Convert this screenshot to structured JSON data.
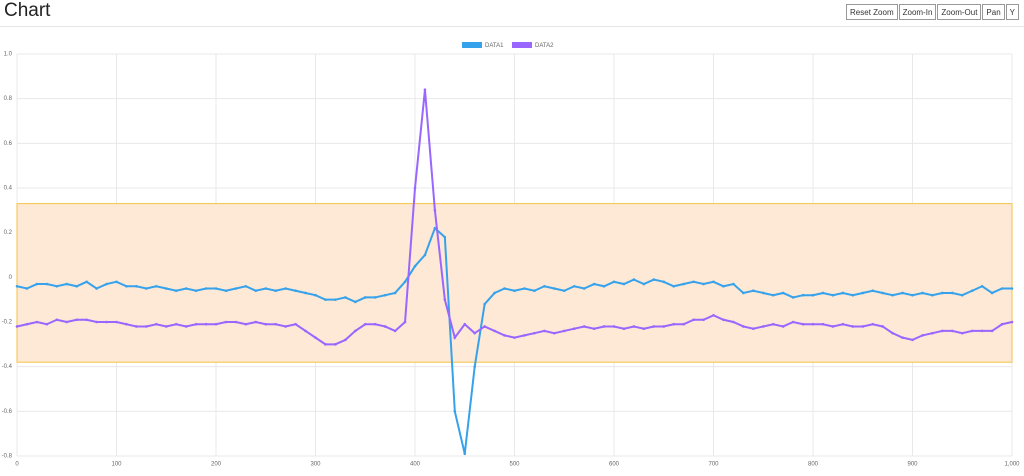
{
  "header": {
    "title": "Chart"
  },
  "toolbar": {
    "buttons": [
      "Reset Zoom",
      "Zoom-In",
      "Zoom-Out",
      "Pan",
      "Y"
    ]
  },
  "chart_data": {
    "type": "line",
    "x": [
      0,
      10,
      20,
      30,
      40,
      50,
      60,
      70,
      80,
      90,
      100,
      110,
      120,
      130,
      140,
      150,
      160,
      170,
      180,
      190,
      200,
      210,
      220,
      230,
      240,
      250,
      260,
      270,
      280,
      290,
      300,
      310,
      320,
      330,
      340,
      350,
      360,
      370,
      380,
      390,
      400,
      410,
      420,
      430,
      440,
      450,
      460,
      470,
      480,
      490,
      500,
      510,
      520,
      530,
      540,
      550,
      560,
      570,
      580,
      590,
      600,
      610,
      620,
      630,
      640,
      650,
      660,
      670,
      680,
      690,
      700,
      710,
      720,
      730,
      740,
      750,
      760,
      770,
      780,
      790,
      800,
      810,
      820,
      830,
      840,
      850,
      860,
      870,
      880,
      890,
      900,
      910,
      920,
      930,
      940,
      950,
      960,
      970,
      980,
      990,
      1000
    ],
    "series": [
      {
        "name": "DATA1",
        "color": "#36a2eb",
        "values": [
          -0.04,
          -0.05,
          -0.03,
          -0.03,
          -0.04,
          -0.03,
          -0.04,
          -0.02,
          -0.05,
          -0.03,
          -0.02,
          -0.04,
          -0.04,
          -0.05,
          -0.04,
          -0.05,
          -0.06,
          -0.05,
          -0.06,
          -0.05,
          -0.05,
          -0.06,
          -0.05,
          -0.04,
          -0.06,
          -0.05,
          -0.06,
          -0.05,
          -0.06,
          -0.07,
          -0.08,
          -0.1,
          -0.1,
          -0.09,
          -0.11,
          -0.09,
          -0.09,
          -0.08,
          -0.07,
          -0.02,
          0.05,
          0.1,
          0.22,
          0.18,
          -0.6,
          -0.79,
          -0.4,
          -0.12,
          -0.07,
          -0.05,
          -0.06,
          -0.05,
          -0.06,
          -0.04,
          -0.05,
          -0.06,
          -0.04,
          -0.05,
          -0.03,
          -0.04,
          -0.02,
          -0.03,
          -0.01,
          -0.03,
          -0.01,
          -0.02,
          -0.04,
          -0.03,
          -0.02,
          -0.03,
          -0.02,
          -0.04,
          -0.03,
          -0.07,
          -0.06,
          -0.07,
          -0.08,
          -0.07,
          -0.09,
          -0.08,
          -0.08,
          -0.07,
          -0.08,
          -0.07,
          -0.08,
          -0.07,
          -0.06,
          -0.07,
          -0.08,
          -0.07,
          -0.08,
          -0.07,
          -0.08,
          -0.07,
          -0.07,
          -0.08,
          -0.06,
          -0.04,
          -0.07,
          -0.05,
          -0.05
        ]
      },
      {
        "name": "DATA2",
        "color": "#9966ff",
        "values": [
          -0.22,
          -0.21,
          -0.2,
          -0.21,
          -0.19,
          -0.2,
          -0.19,
          -0.19,
          -0.2,
          -0.2,
          -0.2,
          -0.21,
          -0.22,
          -0.22,
          -0.21,
          -0.22,
          -0.21,
          -0.22,
          -0.21,
          -0.21,
          -0.21,
          -0.2,
          -0.2,
          -0.21,
          -0.2,
          -0.21,
          -0.21,
          -0.22,
          -0.21,
          -0.24,
          -0.27,
          -0.3,
          -0.3,
          -0.28,
          -0.24,
          -0.21,
          -0.21,
          -0.22,
          -0.24,
          -0.2,
          0.4,
          0.84,
          0.3,
          -0.1,
          -0.27,
          -0.21,
          -0.25,
          -0.22,
          -0.24,
          -0.26,
          -0.27,
          -0.26,
          -0.25,
          -0.24,
          -0.25,
          -0.24,
          -0.23,
          -0.22,
          -0.23,
          -0.22,
          -0.22,
          -0.23,
          -0.22,
          -0.23,
          -0.22,
          -0.22,
          -0.21,
          -0.21,
          -0.19,
          -0.19,
          -0.17,
          -0.19,
          -0.2,
          -0.22,
          -0.23,
          -0.22,
          -0.21,
          -0.22,
          -0.2,
          -0.21,
          -0.21,
          -0.21,
          -0.22,
          -0.21,
          -0.22,
          -0.22,
          -0.21,
          -0.22,
          -0.25,
          -0.27,
          -0.28,
          -0.26,
          -0.25,
          -0.24,
          -0.24,
          -0.25,
          -0.24,
          -0.24,
          -0.24,
          -0.21,
          -0.2
        ]
      }
    ],
    "y_band": {
      "range": [
        -0.38,
        0.33
      ],
      "fill": "#fde9d6",
      "stroke": "#f5c242"
    },
    "xlim": [
      0,
      1000
    ],
    "xticks": [
      0,
      100,
      200,
      300,
      400,
      500,
      600,
      700,
      800,
      900,
      {
        "value": 1000,
        "label": "1,000"
      }
    ],
    "ylim": [
      -0.8,
      1
    ],
    "yticks": [
      {
        "value": -0.8,
        "label": "-0.8"
      },
      {
        "value": -0.6,
        "label": "-0.6"
      },
      {
        "value": -0.4,
        "label": "-0.4"
      },
      {
        "value": -0.2,
        "label": "-0.2"
      },
      0,
      0.2,
      0.4,
      0.6,
      0.8,
      {
        "value": 1,
        "label": "1.0"
      }
    ],
    "grid": true
  }
}
